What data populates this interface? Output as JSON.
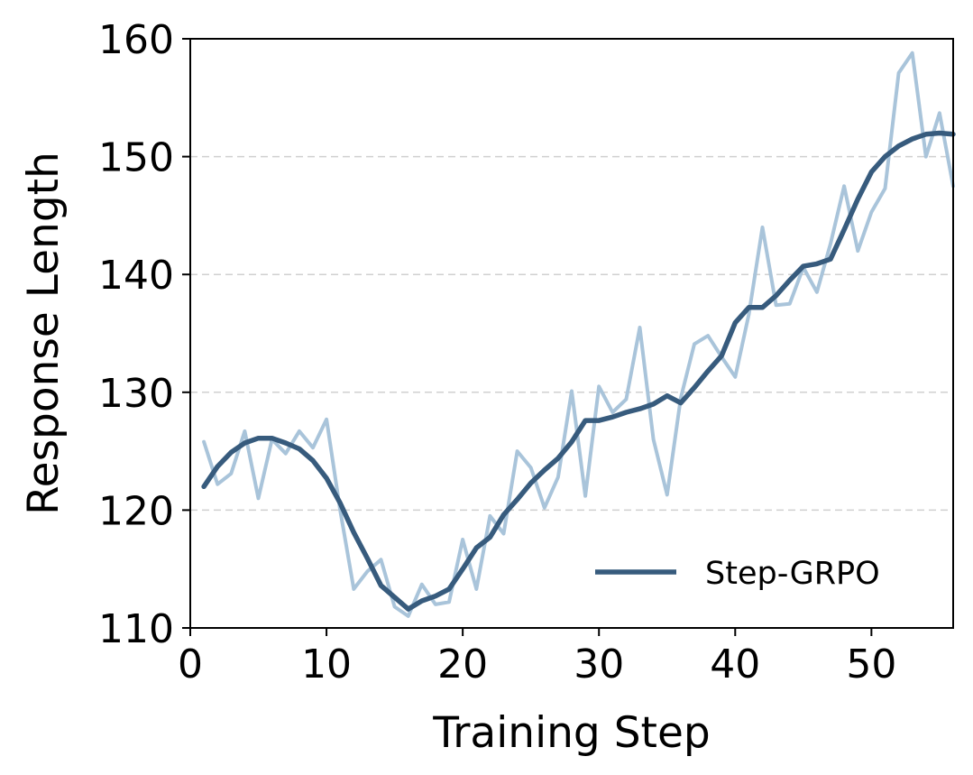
{
  "chart_data": {
    "type": "line",
    "title": "",
    "xlabel": "Training Step",
    "ylabel": "Response Length",
    "xlim": [
      0,
      56
    ],
    "ylim": [
      110,
      160
    ],
    "xticks": [
      0,
      10,
      20,
      30,
      40,
      50
    ],
    "yticks": [
      110,
      120,
      130,
      140,
      150,
      160
    ],
    "grid": "horizontal dashed",
    "legend_position": "lower-right",
    "series": [
      {
        "name": "",
        "role": "raw",
        "color": "#a9c4da",
        "x": [
          1,
          2,
          3,
          4,
          5,
          6,
          7,
          8,
          9,
          10,
          11,
          12,
          13,
          14,
          15,
          16,
          17,
          18,
          19,
          20,
          21,
          22,
          23,
          24,
          25,
          26,
          27,
          28,
          29,
          30,
          31,
          32,
          33,
          34,
          35,
          36,
          37,
          38,
          39,
          40,
          41,
          42,
          43,
          44,
          45,
          46,
          47,
          48,
          49,
          50,
          51,
          52,
          53,
          54,
          55,
          56
        ],
        "values": [
          125.8,
          122.2,
          123.1,
          126.7,
          121.0,
          126.0,
          124.8,
          126.7,
          125.3,
          127.7,
          120.0,
          113.3,
          114.8,
          115.8,
          111.8,
          111.0,
          113.7,
          112.0,
          112.2,
          117.5,
          113.3,
          119.5,
          118.0,
          125.0,
          123.6,
          120.2,
          122.8,
          130.1,
          121.2,
          130.5,
          128.3,
          129.4,
          135.5,
          126.0,
          121.3,
          129.5,
          134.1,
          134.8,
          133.0,
          131.3,
          136.6,
          144.0,
          137.4,
          137.5,
          140.6,
          138.5,
          142.6,
          147.5,
          142.0,
          145.3,
          147.3,
          157.1,
          158.8,
          150.0,
          153.7,
          147.5
        ]
      },
      {
        "name": "Step-GRPO",
        "role": "smoothed",
        "color": "#375b7d",
        "x": [
          1,
          2,
          3,
          4,
          5,
          6,
          7,
          8,
          9,
          10,
          11,
          12,
          13,
          14,
          15,
          16,
          17,
          18,
          19,
          20,
          21,
          22,
          23,
          24,
          25,
          26,
          27,
          28,
          29,
          30,
          31,
          32,
          33,
          34,
          35,
          36,
          37,
          38,
          39,
          40,
          41,
          42,
          43,
          44,
          45,
          46,
          47,
          48,
          49,
          50,
          51,
          52,
          53,
          54,
          55,
          56
        ],
        "values": [
          122.0,
          123.7,
          124.9,
          125.7,
          126.1,
          126.1,
          125.7,
          125.2,
          124.2,
          122.7,
          120.6,
          118.1,
          115.9,
          113.6,
          112.6,
          111.6,
          112.3,
          112.7,
          113.3,
          115.0,
          116.8,
          117.7,
          119.6,
          120.9,
          122.3,
          123.4,
          124.4,
          125.8,
          127.6,
          127.6,
          127.9,
          128.3,
          128.6,
          129.0,
          129.7,
          129.1,
          130.4,
          131.8,
          133.1,
          135.9,
          137.2,
          137.2,
          138.2,
          139.5,
          140.7,
          140.9,
          141.3,
          143.8,
          146.4,
          148.7,
          150.0,
          150.9,
          151.5,
          151.9,
          152.0,
          151.9
        ]
      }
    ],
    "legend": [
      "Step-GRPO"
    ]
  }
}
